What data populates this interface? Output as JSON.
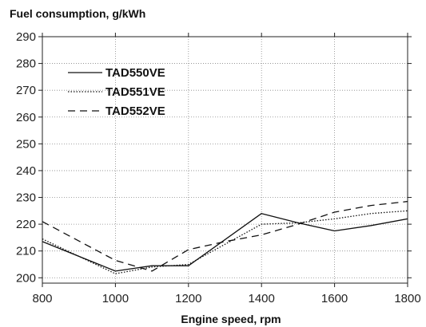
{
  "chart_data": {
    "type": "line",
    "ylabel": "Fuel consumption, g/kWh",
    "xlabel": "Engine speed, rpm",
    "xlim": [
      800,
      1800
    ],
    "ylim": [
      198,
      290
    ],
    "x_ticks": [
      800,
      1000,
      1200,
      1400,
      1600,
      1800
    ],
    "y_ticks": [
      200,
      210,
      220,
      230,
      240,
      250,
      260,
      270,
      280,
      290
    ],
    "grid": true,
    "legend_position": "top-left",
    "series": [
      {
        "name": "TAD550VE",
        "style": "solid",
        "x": [
          800,
          1000,
          1100,
          1200,
          1400,
          1500,
          1600,
          1700,
          1800
        ],
        "y": [
          213.5,
          202.5,
          204.5,
          204.5,
          224,
          220.5,
          217.5,
          219.5,
          222
        ]
      },
      {
        "name": "TAD551VE",
        "style": "dotted",
        "x": [
          800,
          1000,
          1100,
          1200,
          1400,
          1500,
          1600,
          1700,
          1800
        ],
        "y": [
          214.5,
          201.5,
          204,
          205,
          220,
          220.5,
          222,
          224,
          225
        ]
      },
      {
        "name": "TAD552VE",
        "style": "dashed",
        "x": [
          800,
          1000,
          1100,
          1200,
          1300,
          1400,
          1500,
          1600,
          1700,
          1800
        ],
        "y": [
          221,
          206.5,
          202.5,
          210.5,
          213.5,
          216,
          220,
          224.5,
          227,
          228.5
        ]
      }
    ]
  }
}
